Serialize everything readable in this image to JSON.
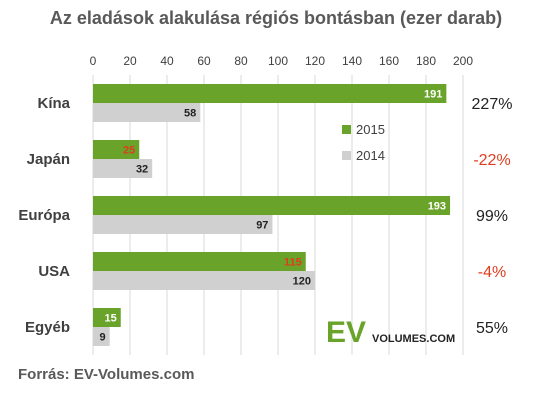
{
  "chart_data": {
    "type": "bar",
    "orientation": "horizontal",
    "title": "Az eladások alakulása régiós bontásban (ezer darab)",
    "categories": [
      "Kína",
      "Japán",
      "Európa",
      "USA",
      "Egyéb"
    ],
    "series": [
      {
        "name": "2015",
        "color": "#6aa329",
        "values": [
          191,
          25,
          193,
          115,
          15
        ],
        "label_colors": [
          "#ffffff",
          "#e03c1f",
          "#ffffff",
          "#e03c1f",
          "#ffffff"
        ]
      },
      {
        "name": "2014",
        "color": "#d0d0d0",
        "values": [
          58,
          32,
          97,
          120,
          9
        ],
        "label_colors": [
          "#222222",
          "#222222",
          "#222222",
          "#222222",
          "#222222"
        ]
      }
    ],
    "change_labels": [
      "227%",
      "-22%",
      "99%",
      "-4%",
      "55%"
    ],
    "change_colors": [
      "#222222",
      "#e03c1f",
      "#222222",
      "#e03c1f",
      "#222222"
    ],
    "xlim": [
      0,
      200
    ],
    "xticks": [
      0,
      20,
      40,
      60,
      80,
      100,
      120,
      140,
      160,
      180,
      200
    ],
    "grid": true,
    "legend_position": "right-inside"
  },
  "logo": {
    "ev": "EV",
    "volumes": "VOLUMES.COM"
  },
  "source": "Forrás: EV-Volumes.com"
}
